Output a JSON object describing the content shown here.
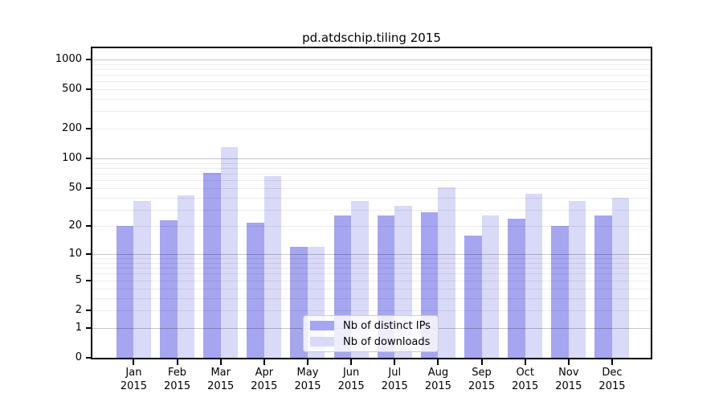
{
  "chart_data": {
    "type": "bar",
    "title": "pd.atdschip.tiling 2015",
    "year": "2015",
    "categories": [
      "Jan",
      "Feb",
      "Mar",
      "Apr",
      "May",
      "Jun",
      "Jul",
      "Aug",
      "Sep",
      "Oct",
      "Nov",
      "Dec"
    ],
    "series": [
      {
        "name": "Nb of distinct IPs",
        "color": "#a5a5f0",
        "values": [
          20,
          23,
          72,
          22,
          12,
          26,
          26,
          28,
          16,
          24,
          20,
          26
        ]
      },
      {
        "name": "Nb of downloads",
        "color": "#d9d9f8",
        "values": [
          37,
          42,
          130,
          66,
          12,
          37,
          33,
          51,
          26,
          44,
          37,
          40
        ]
      }
    ],
    "yscale": "log1p",
    "yticks": [
      0,
      1,
      2,
      5,
      10,
      20,
      50,
      100,
      200,
      500,
      1000
    ],
    "ylim": [
      0,
      1295
    ],
    "grid": true,
    "legend_position": "lower center",
    "colors": {
      "axis": "#000000",
      "major_grid": "#c8c8c8",
      "minor_grid": "#ebebeb",
      "background": "#ffffff"
    }
  }
}
